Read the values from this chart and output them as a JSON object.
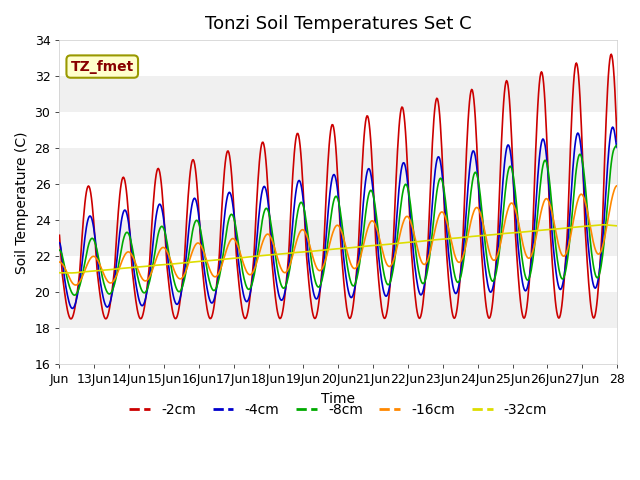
{
  "title": "Tonzi Soil Temperatures Set C",
  "xlabel": "Time",
  "ylabel": "Soil Temperature (C)",
  "ylim": [
    16,
    34
  ],
  "xlim_days": [
    0,
    16
  ],
  "xtick_labels": [
    "Jun",
    "13Jun",
    "14Jun",
    "15Jun",
    "16Jun",
    "17Jun",
    "18Jun",
    "19Jun",
    "20Jun",
    "21Jun",
    "22Jun",
    "23Jun",
    "24Jun",
    "25Jun",
    "26Jun",
    "27Jun",
    "28"
  ],
  "xtick_positions": [
    0,
    1,
    2,
    3,
    4,
    5,
    6,
    7,
    8,
    9,
    10,
    11,
    12,
    13,
    14,
    15,
    16
  ],
  "series": [
    {
      "label": "-2cm",
      "color": "#cc0000"
    },
    {
      "label": "-4cm",
      "color": "#0000cc"
    },
    {
      "label": "-8cm",
      "color": "#00aa00"
    },
    {
      "label": "-16cm",
      "color": "#ff8800"
    },
    {
      "label": "-32cm",
      "color": "#dddd00"
    }
  ],
  "legend_label": "TZ_fmet",
  "legend_facecolor": "#ffffcc",
  "legend_edgecolor": "#999900",
  "legend_text_color": "#880000",
  "fig_facecolor": "#ffffff",
  "plot_bg_light": "#f0f0f0",
  "plot_bg_dark": "#e0e0e0",
  "title_fontsize": 13,
  "axis_fontsize": 10,
  "tick_fontsize": 9,
  "legend_fontsize": 10
}
